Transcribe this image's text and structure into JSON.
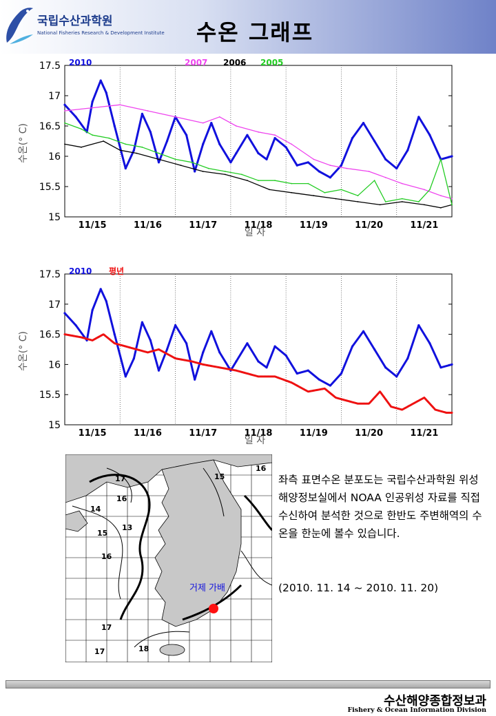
{
  "header": {
    "logo_name": "국립수산과학원",
    "logo_sub": "National Fisheries Research & Development Institute",
    "title": "수온 그래프"
  },
  "colors": {
    "y2010": "#1111dd",
    "y2007": "#ee44ee",
    "y2006": "#000000",
    "y2005": "#22cc22",
    "normal": "#ee1111"
  },
  "chart_data": [
    {
      "type": "line",
      "title": "",
      "xlabel": "일 자",
      "ylabel": "수온(° C)",
      "xlim": [
        14.5,
        21.5
      ],
      "ylim": [
        15,
        17.5
      ],
      "y_ticks": [
        "15",
        "15.5",
        "16",
        "16.5",
        "17",
        "17.5"
      ],
      "x_tick_labels": [
        "11/15",
        "11/16",
        "11/17",
        "11/18",
        "11/19",
        "11/20",
        "11/21"
      ],
      "x_tick_positions": [
        15,
        16,
        17,
        18,
        19,
        20,
        21
      ],
      "grid": "vertical dotted at day boundaries",
      "legend_placement": "top",
      "series": [
        {
          "name": "2010",
          "color_key": "y2010",
          "x": [
            14.5,
            14.7,
            14.9,
            15.0,
            15.15,
            15.25,
            15.4,
            15.6,
            15.75,
            15.9,
            16.05,
            16.2,
            16.35,
            16.5,
            16.7,
            16.85,
            17.0,
            17.15,
            17.3,
            17.5,
            17.6,
            17.8,
            18.0,
            18.15,
            18.3,
            18.5,
            18.7,
            18.9,
            19.1,
            19.3,
            19.5,
            19.7,
            19.9,
            20.1,
            20.3,
            20.5,
            20.7,
            20.9,
            21.1,
            21.3,
            21.5
          ],
          "y": [
            16.85,
            16.65,
            16.4,
            16.9,
            17.25,
            17.05,
            16.5,
            15.8,
            16.1,
            16.7,
            16.4,
            15.9,
            16.25,
            16.65,
            16.35,
            15.75,
            16.2,
            16.55,
            16.2,
            15.9,
            16.05,
            16.35,
            16.05,
            15.95,
            16.3,
            16.15,
            15.85,
            15.9,
            15.75,
            15.65,
            15.85,
            16.3,
            16.55,
            16.25,
            15.95,
            15.8,
            16.1,
            16.65,
            16.35,
            15.95,
            16.0
          ]
        },
        {
          "name": "2007",
          "color_key": "y2007",
          "x": [
            14.5,
            15.0,
            15.5,
            16.0,
            16.5,
            17.0,
            17.3,
            17.6,
            18.0,
            18.3,
            18.6,
            19.0,
            19.3,
            19.6,
            20.0,
            20.3,
            20.6,
            21.0,
            21.3,
            21.5
          ],
          "y": [
            16.75,
            16.8,
            16.85,
            16.75,
            16.65,
            16.55,
            16.65,
            16.5,
            16.4,
            16.35,
            16.2,
            15.95,
            15.85,
            15.8,
            15.75,
            15.65,
            15.55,
            15.45,
            15.35,
            15.3
          ]
        },
        {
          "name": "2006",
          "color_key": "y2006",
          "x": [
            14.5,
            14.8,
            15.2,
            15.5,
            15.8,
            16.2,
            16.6,
            17.0,
            17.4,
            17.8,
            18.2,
            18.6,
            19.0,
            19.4,
            19.8,
            20.2,
            20.6,
            21.0,
            21.3,
            21.5
          ],
          "y": [
            16.2,
            16.15,
            16.25,
            16.1,
            16.05,
            15.95,
            15.85,
            15.75,
            15.7,
            15.6,
            15.45,
            15.4,
            15.35,
            15.3,
            15.25,
            15.2,
            15.25,
            15.2,
            15.15,
            15.2
          ]
        },
        {
          "name": "2005",
          "color_key": "y2005",
          "x": [
            14.5,
            14.8,
            15.0,
            15.3,
            15.6,
            15.9,
            16.2,
            16.5,
            16.8,
            17.1,
            17.4,
            17.7,
            18.0,
            18.3,
            18.6,
            18.9,
            19.2,
            19.5,
            19.8,
            20.1,
            20.3,
            20.6,
            20.9,
            21.1,
            21.3,
            21.5
          ],
          "y": [
            16.55,
            16.45,
            16.35,
            16.3,
            16.2,
            16.15,
            16.05,
            15.95,
            15.9,
            15.8,
            15.75,
            15.7,
            15.6,
            15.6,
            15.55,
            15.55,
            15.4,
            15.45,
            15.35,
            15.6,
            15.25,
            15.3,
            15.25,
            15.45,
            15.95,
            15.2
          ]
        }
      ]
    },
    {
      "type": "line",
      "title": "",
      "xlabel": "일 자",
      "ylabel": "수온(° C)",
      "xlim": [
        14.5,
        21.5
      ],
      "ylim": [
        15,
        17.5
      ],
      "y_ticks": [
        "15",
        "15.5",
        "16",
        "16.5",
        "17",
        "17.5"
      ],
      "x_tick_labels": [
        "11/15",
        "11/16",
        "11/17",
        "11/18",
        "11/19",
        "11/20",
        "11/21"
      ],
      "x_tick_positions": [
        15,
        16,
        17,
        18,
        19,
        20,
        21
      ],
      "grid": "vertical dotted at day boundaries",
      "legend_placement": "top-left",
      "series": [
        {
          "name": "2010",
          "color_key": "y2010",
          "x": [
            14.5,
            14.7,
            14.9,
            15.0,
            15.15,
            15.25,
            15.4,
            15.6,
            15.75,
            15.9,
            16.05,
            16.2,
            16.35,
            16.5,
            16.7,
            16.85,
            17.0,
            17.15,
            17.3,
            17.5,
            17.6,
            17.8,
            18.0,
            18.15,
            18.3,
            18.5,
            18.7,
            18.9,
            19.1,
            19.3,
            19.5,
            19.7,
            19.9,
            20.1,
            20.3,
            20.5,
            20.7,
            20.9,
            21.1,
            21.3,
            21.5
          ],
          "y": [
            16.85,
            16.65,
            16.4,
            16.9,
            17.25,
            17.05,
            16.5,
            15.8,
            16.1,
            16.7,
            16.4,
            15.9,
            16.25,
            16.65,
            16.35,
            15.75,
            16.2,
            16.55,
            16.2,
            15.9,
            16.05,
            16.35,
            16.05,
            15.95,
            16.3,
            16.15,
            15.85,
            15.9,
            15.75,
            15.65,
            15.85,
            16.3,
            16.55,
            16.25,
            15.95,
            15.8,
            16.1,
            16.65,
            16.35,
            15.95,
            16.0
          ]
        },
        {
          "name": "평년",
          "color_key": "normal",
          "x": [
            14.5,
            14.8,
            15.0,
            15.2,
            15.4,
            15.6,
            15.8,
            16.0,
            16.2,
            16.5,
            16.8,
            17.0,
            17.3,
            17.6,
            18.0,
            18.3,
            18.6,
            18.9,
            19.2,
            19.4,
            19.6,
            19.8,
            20.0,
            20.2,
            20.4,
            20.6,
            20.8,
            21.0,
            21.2,
            21.4,
            21.5
          ],
          "y": [
            16.5,
            16.45,
            16.4,
            16.5,
            16.35,
            16.3,
            16.25,
            16.2,
            16.25,
            16.1,
            16.05,
            16.0,
            15.95,
            15.9,
            15.8,
            15.8,
            15.7,
            15.55,
            15.6,
            15.45,
            15.4,
            15.35,
            15.35,
            15.55,
            15.3,
            15.25,
            15.35,
            15.45,
            15.25,
            15.2,
            15.2
          ]
        }
      ]
    }
  ],
  "map": {
    "contour_labels": [
      "17",
      "16",
      "14",
      "15",
      "13",
      "16",
      "15",
      "16",
      "17",
      "17",
      "18"
    ],
    "location_label": "거제 가배"
  },
  "description": "좌측 표면수온 분포도는 국립수산과학원 위성해양정보실에서 NOAA 인공위성 자료를 직접 수신하여 분석한 것으로 한반도 주변해역의 수온을 한눈에 볼수 있습니다.",
  "period": "(2010. 11. 14 ~ 2010. 11. 20)",
  "footer": {
    "org_ko": "수산해양종합정보과",
    "org_en": "Fishery & Ocean Information Division"
  }
}
